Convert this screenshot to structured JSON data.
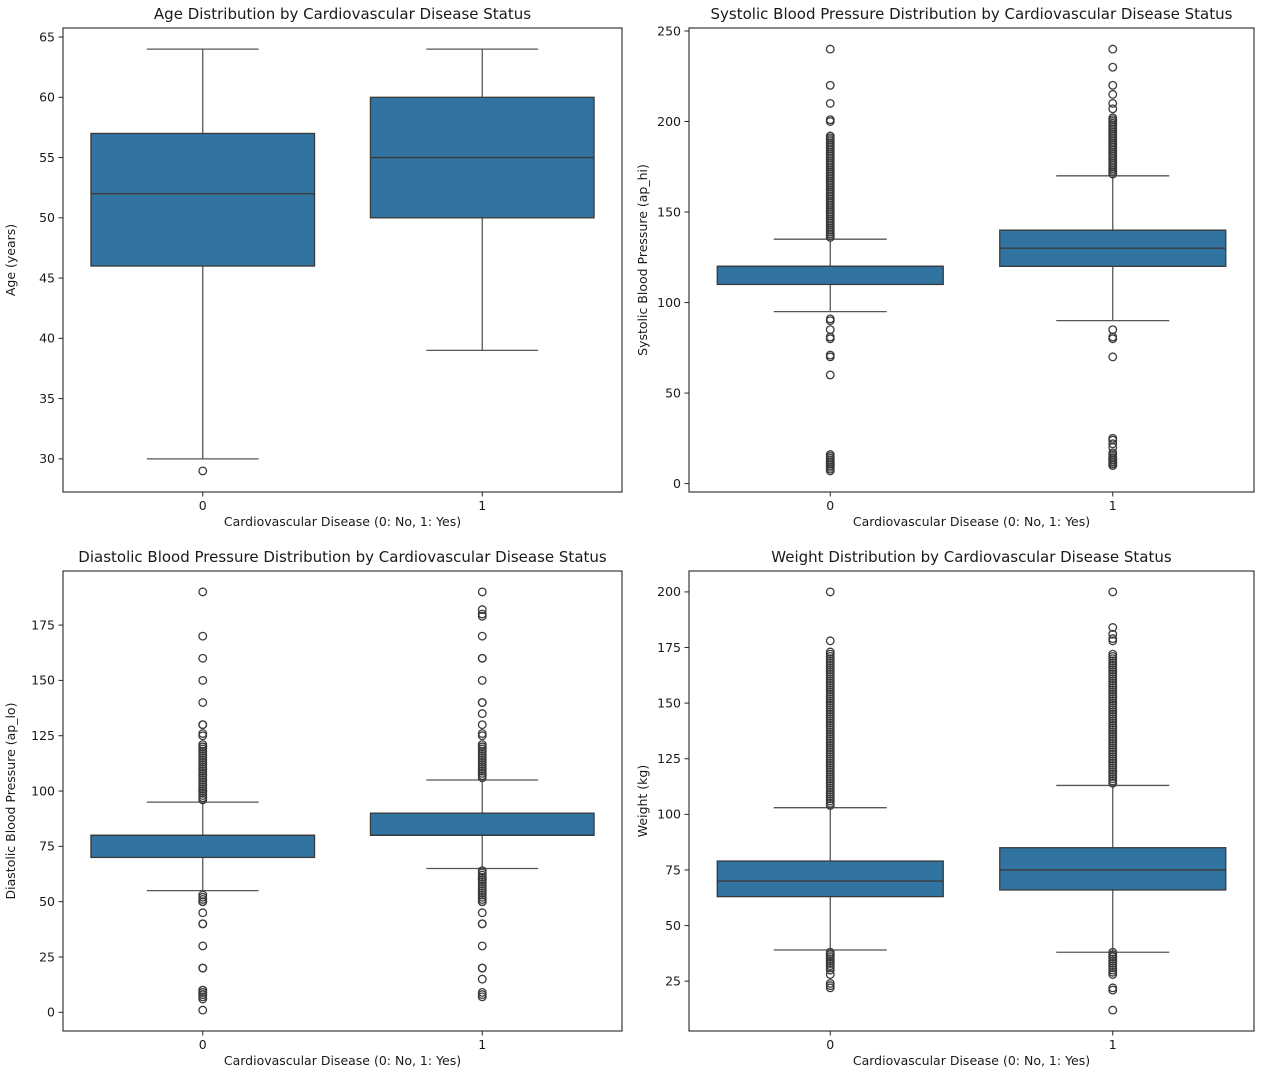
{
  "figure": {
    "background": "#ffffff",
    "box_fill_color": "#3274a1",
    "box_edge_color": "#3a3a3a",
    "whisker_color": "#565656",
    "axis_color": "#262626"
  },
  "chart_data": [
    {
      "type": "boxplot",
      "title": "Age Distribution by Cardiovascular Disease Status",
      "xlabel": "Cardiovascular Disease (0: No, 1: Yes)",
      "ylabel": "Age (years)",
      "categories": [
        "0",
        "1"
      ],
      "ylim": [
        27.25,
        65.75
      ],
      "yticks": [
        30,
        35,
        40,
        45,
        50,
        55,
        60,
        65
      ],
      "grid": false,
      "boxes": [
        {
          "category": "0",
          "whisker_low": 30,
          "q1": 46,
          "median": 52,
          "q3": 57,
          "whisker_high": 64,
          "outliers": [
            29
          ]
        },
        {
          "category": "1",
          "whisker_low": 39,
          "q1": 50,
          "median": 55,
          "q3": 60,
          "whisker_high": 64,
          "outliers": []
        }
      ]
    },
    {
      "type": "boxplot",
      "title": "Systolic Blood Pressure Distribution by Cardiovascular Disease Status",
      "xlabel": "Cardiovascular Disease (0: No, 1: Yes)",
      "ylabel": "Systolic Blood Pressure (ap_hi)",
      "categories": [
        "0",
        "1"
      ],
      "ylim": [
        -4.65,
        251.65
      ],
      "yticks": [
        0,
        50,
        100,
        150,
        200,
        250
      ],
      "grid": false,
      "boxes": [
        {
          "category": "0",
          "whisker_low": 95,
          "q1": 110,
          "median": 120,
          "q3": 120,
          "whisker_high": 135,
          "outliers": [
            240,
            220,
            210,
            201,
            200,
            192,
            191,
            190,
            189,
            188,
            187,
            186,
            185,
            184,
            183,
            182,
            181,
            180,
            179,
            178,
            177,
            176,
            175,
            174,
            173,
            172,
            171,
            170,
            169,
            168,
            167,
            166,
            165,
            164,
            163,
            162,
            161,
            160,
            159,
            158,
            157,
            156,
            155,
            154,
            153,
            152,
            151,
            150,
            149,
            148,
            147,
            146,
            145,
            144,
            143,
            142,
            141,
            140,
            139,
            138,
            137,
            136,
            91,
            90,
            85,
            81,
            80,
            71,
            70,
            60,
            16,
            15,
            14,
            13,
            12,
            12,
            11,
            11,
            10,
            10,
            9,
            8,
            7
          ]
        },
        {
          "category": "1",
          "whisker_low": 90,
          "q1": 120,
          "median": 130,
          "q3": 140,
          "whisker_high": 170,
          "outliers": [
            240,
            230,
            220,
            215,
            210,
            207,
            202,
            201,
            200,
            199,
            198,
            197,
            196,
            195,
            194,
            193,
            192,
            191,
            190,
            189,
            188,
            187,
            186,
            185,
            184,
            183,
            182,
            181,
            180,
            179,
            178,
            177,
            176,
            175,
            174,
            173,
            172,
            171,
            85,
            81,
            80,
            70,
            25,
            24,
            22,
            20,
            17,
            16,
            15,
            14,
            14,
            13,
            13,
            12,
            12,
            11,
            11,
            10,
            10
          ]
        }
      ]
    },
    {
      "type": "boxplot",
      "title": "Diastolic Blood Pressure Distribution by Cardiovascular Disease Status",
      "xlabel": "Cardiovascular Disease (0: No, 1: Yes)",
      "ylabel": "Diastolic Blood Pressure (ap_lo)",
      "categories": [
        "0",
        "1"
      ],
      "ylim": [
        -8.45,
        199.45
      ],
      "yticks": [
        0,
        25,
        50,
        75,
        100,
        125,
        150,
        175
      ],
      "grid": false,
      "boxes": [
        {
          "category": "0",
          "whisker_low": 55,
          "q1": 70,
          "median": 80,
          "q3": 80,
          "whisker_high": 95,
          "outliers": [
            190,
            170,
            160,
            150,
            140,
            130,
            130,
            126,
            125,
            121,
            120,
            120,
            119,
            118,
            117,
            116,
            115,
            114,
            113,
            112,
            111,
            110,
            110,
            109,
            108,
            107,
            106,
            105,
            104,
            103,
            102,
            101,
            100,
            100,
            99,
            98,
            97,
            96,
            53,
            52,
            51,
            50,
            50,
            45,
            40,
            40,
            30,
            20,
            20,
            10,
            10,
            9,
            9,
            8,
            8,
            7,
            6,
            1
          ]
        },
        {
          "category": "1",
          "whisker_low": 65,
          "q1": 80,
          "median": 80,
          "q3": 90,
          "whisker_high": 105,
          "outliers": [
            190,
            182,
            180,
            179,
            170,
            160,
            160,
            150,
            140,
            140,
            135,
            130,
            126,
            125,
            121,
            120,
            120,
            119,
            118,
            117,
            116,
            115,
            114,
            113,
            112,
            111,
            110,
            110,
            109,
            108,
            107,
            106,
            64,
            63,
            62,
            61,
            60,
            60,
            59,
            58,
            57,
            56,
            55,
            54,
            53,
            52,
            51,
            50,
            50,
            45,
            40,
            40,
            30,
            20,
            20,
            15,
            9,
            8,
            7
          ]
        }
      ]
    },
    {
      "type": "boxplot",
      "title": "Weight Distribution by Cardiovascular Disease Status",
      "xlabel": "Cardiovascular Disease (0: No, 1: Yes)",
      "ylabel": "Weight (kg)",
      "categories": [
        "0",
        "1"
      ],
      "ylim": [
        2.6,
        209.4
      ],
      "yticks": [
        25,
        50,
        75,
        100,
        125,
        150,
        175,
        200
      ],
      "grid": false,
      "boxes": [
        {
          "category": "0",
          "whisker_low": 39,
          "q1": 63,
          "median": 70,
          "q3": 79,
          "whisker_high": 103,
          "outliers": [
            200,
            178,
            173,
            172,
            171,
            170,
            169,
            168,
            167,
            166,
            165,
            164,
            163,
            162,
            161,
            160,
            159,
            158,
            157,
            156,
            155,
            154,
            153,
            152,
            151,
            150,
            149,
            148,
            147,
            146,
            145,
            144,
            143,
            142,
            141,
            140,
            139,
            138,
            137,
            136,
            135,
            134,
            133,
            132,
            131,
            130,
            129,
            128,
            127,
            126,
            125,
            124,
            123,
            122,
            121,
            120,
            119,
            118,
            117,
            116,
            115,
            114,
            113,
            112,
            111,
            110,
            109,
            108,
            107,
            106,
            105,
            104,
            38,
            37,
            37,
            36,
            36,
            35,
            35,
            34,
            34,
            33,
            33,
            32,
            31,
            30,
            28,
            24,
            23,
            22
          ]
        },
        {
          "category": "1",
          "whisker_low": 38,
          "q1": 66,
          "median": 75,
          "q3": 85,
          "whisker_high": 113,
          "outliers": [
            200,
            184,
            181,
            179,
            178,
            172,
            171,
            170,
            169,
            168,
            167,
            166,
            165,
            164,
            163,
            162,
            161,
            160,
            159,
            158,
            157,
            156,
            155,
            154,
            153,
            152,
            151,
            150,
            149,
            148,
            147,
            146,
            145,
            144,
            143,
            142,
            141,
            140,
            139,
            138,
            137,
            136,
            135,
            134,
            133,
            132,
            131,
            130,
            129,
            128,
            127,
            126,
            125,
            124,
            123,
            122,
            121,
            120,
            119,
            118,
            117,
            116,
            115,
            114,
            38,
            37,
            36,
            36,
            35,
            34,
            34,
            33,
            32,
            31,
            30,
            29,
            28,
            22,
            21,
            12
          ]
        }
      ]
    }
  ]
}
